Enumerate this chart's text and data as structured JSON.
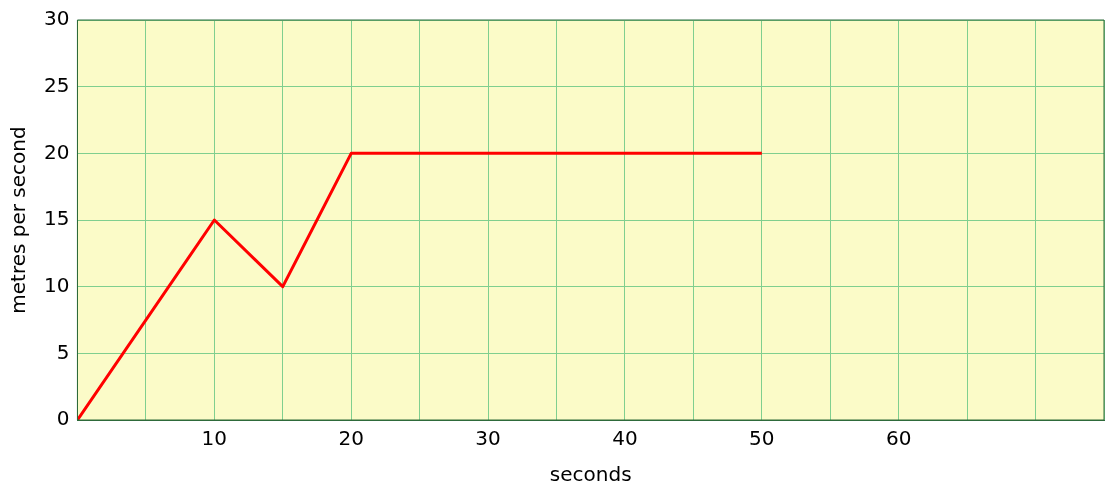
{
  "chart_data": {
    "type": "line",
    "xlabel": "seconds",
    "ylabel": "metres per second",
    "x": [
      0,
      10,
      15,
      20,
      50
    ],
    "series": [
      {
        "color": "#ff0000",
        "values": [
          0,
          15,
          10,
          20,
          20
        ]
      }
    ],
    "xlim": [
      0,
      75
    ],
    "xticks": [
      {
        "value": 0,
        "label": null
      },
      {
        "value": 5,
        "label": null
      },
      10,
      {
        "value": 15,
        "label": null
      },
      20,
      {
        "value": 25,
        "label": null
      },
      30,
      {
        "value": 35,
        "label": null
      },
      40,
      {
        "value": 45,
        "label": null
      },
      50,
      {
        "value": 55,
        "label": null
      },
      60,
      {
        "value": 65,
        "label": null
      },
      {
        "value": 70,
        "label": null
      },
      {
        "value": 75,
        "label": null
      }
    ],
    "ylim": [
      0,
      30
    ],
    "yticks": [
      0,
      5,
      10,
      15,
      20,
      25,
      30
    ],
    "grid": true,
    "legend": false,
    "marker": "none",
    "line_style": "solid"
  }
}
